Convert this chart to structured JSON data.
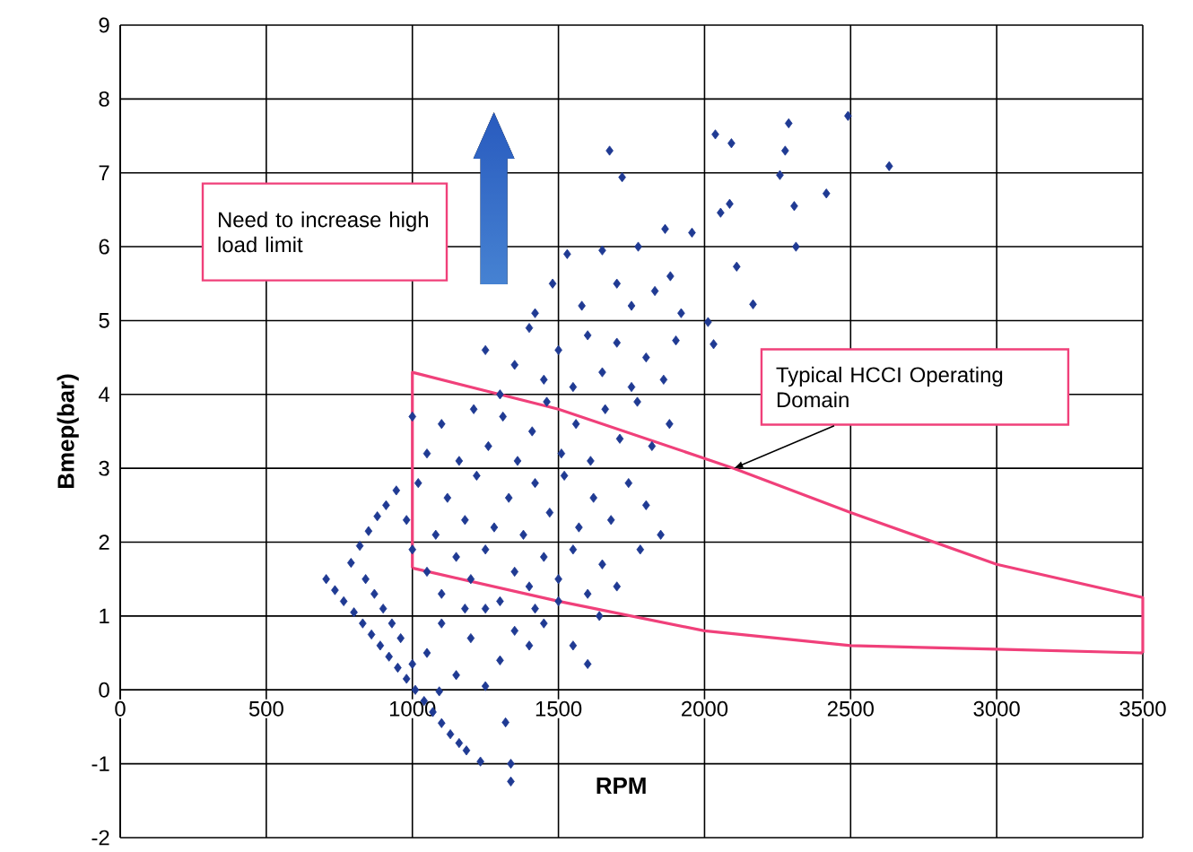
{
  "chart_data": {
    "type": "scatter",
    "xlabel": "RPM",
    "ylabel": "Bmep(bar)",
    "annotations": [
      "Need to increase high load limit",
      {
        "text": "Typical HCCI Operating Domain",
        "x": 2100,
        "y": 3.0
      }
    ],
    "xlim": [
      0,
      3500
    ],
    "ylim": [
      -2,
      9
    ],
    "xticks": [
      0,
      500,
      1000,
      1500,
      2000,
      2500,
      3000,
      3500
    ],
    "yticks": [
      -2,
      -1,
      0,
      1,
      2,
      3,
      4,
      5,
      6,
      7,
      8,
      9
    ],
    "grid": true,
    "series": [
      {
        "color": "#1f3a93",
        "marker": "diamond",
        "x": [
          705,
          735,
          765,
          800,
          830,
          860,
          890,
          920,
          950,
          980,
          1010,
          1040,
          1070,
          1100,
          1130,
          1160,
          1185,
          790,
          820,
          850,
          880,
          910,
          945,
          840,
          870,
          900,
          930,
          960,
          1233,
          1319,
          1337,
          1337,
          1092,
          1000,
          1150,
          1250,
          1050,
          1100,
          1200,
          1300,
          1350,
          1400,
          1450,
          1550,
          1600,
          1640,
          1500,
          1250,
          1000,
          1050,
          1100,
          1150,
          1200,
          1250,
          1300,
          1350,
          1400,
          1450,
          1500,
          1550,
          1600,
          1650,
          1700,
          1780,
          1180,
          1420,
          980,
          1020,
          1080,
          1120,
          1180,
          1220,
          1280,
          1330,
          1380,
          1420,
          1470,
          1520,
          1570,
          1620,
          1680,
          1740,
          1800,
          1850,
          1000,
          1050,
          1100,
          1160,
          1210,
          1260,
          1310,
          1360,
          1410,
          1460,
          1510,
          1560,
          1610,
          1660,
          1710,
          1770,
          1820,
          1880,
          1250,
          1300,
          1350,
          1400,
          1450,
          1500,
          1550,
          1600,
          1650,
          1700,
          1750,
          1800,
          1860,
          1902,
          2031,
          2012,
          1420,
          1480,
          1530,
          1580,
          1650,
          1700,
          1773,
          1750,
          1830,
          1883,
          1920,
          2110,
          2166,
          1675,
          1718,
          2037,
          2092,
          2288,
          2491,
          2276,
          2258,
          2632,
          2417,
          2307,
          2086,
          2055,
          2313,
          1957,
          1865
        ],
        "values": [
          1.5,
          1.35,
          1.2,
          1.05,
          0.9,
          0.75,
          0.6,
          0.45,
          0.3,
          0.15,
          0.0,
          -0.15,
          -0.3,
          -0.45,
          -0.6,
          -0.72,
          -0.82,
          1.72,
          1.95,
          2.15,
          2.35,
          2.5,
          2.7,
          1.5,
          1.3,
          1.1,
          0.9,
          0.7,
          -0.97,
          -0.44,
          -1.0,
          -1.24,
          -0.02,
          0.35,
          0.2,
          0.05,
          0.5,
          0.9,
          0.7,
          0.4,
          0.8,
          0.6,
          0.9,
          0.6,
          0.35,
          1.0,
          1.2,
          1.1,
          1.9,
          1.6,
          1.3,
          1.8,
          1.5,
          1.9,
          1.2,
          1.6,
          1.4,
          1.8,
          1.5,
          1.9,
          1.3,
          1.7,
          1.4,
          1.9,
          1.1,
          1.1,
          2.3,
          2.8,
          2.1,
          2.6,
          2.3,
          2.9,
          2.2,
          2.6,
          2.1,
          2.8,
          2.4,
          2.9,
          2.2,
          2.6,
          2.3,
          2.8,
          2.5,
          2.1,
          3.7,
          3.2,
          3.6,
          3.1,
          3.8,
          3.3,
          3.7,
          3.1,
          3.5,
          3.9,
          3.2,
          3.6,
          3.1,
          3.8,
          3.4,
          3.9,
          3.3,
          3.6,
          4.6,
          4.0,
          4.4,
          4.9,
          4.2,
          4.6,
          4.1,
          4.8,
          4.3,
          4.7,
          4.1,
          4.5,
          4.2,
          4.73,
          4.68,
          4.98,
          5.1,
          5.5,
          5.9,
          5.2,
          5.95,
          5.5,
          6.0,
          5.2,
          5.4,
          5.6,
          5.1,
          5.73,
          5.22,
          7.3,
          6.94,
          7.52,
          7.4,
          7.67,
          7.77,
          7.3,
          6.97,
          7.09,
          6.72,
          6.55,
          6.58,
          6.46,
          6.0,
          6.19,
          6.24
        ]
      },
      {
        "type": "line",
        "color": "#f0407a",
        "marker": "none",
        "x": [
          1000,
          1000,
          1500,
          2100,
          2500,
          3000,
          3500,
          3500
        ],
        "values": [
          1.65,
          4.3,
          3.8,
          3.0,
          2.4,
          1.7,
          1.25,
          0.5
        ]
      },
      {
        "type": "line",
        "color": "#f0407a",
        "marker": "none",
        "x": [
          1000,
          1500,
          2000,
          2500,
          3000,
          3500
        ],
        "values": [
          1.65,
          1.2,
          0.8,
          0.6,
          0.55,
          0.5
        ]
      }
    ]
  }
}
